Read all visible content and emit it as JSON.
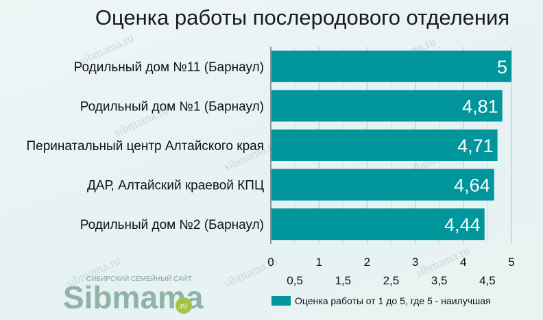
{
  "title": "Оценка работы послеродового отделения",
  "chart_data": {
    "type": "bar",
    "orientation": "horizontal",
    "title": "Оценка работы послеродового отделения",
    "categories": [
      "Родильный дом №11 (Барнаул)",
      "Родильный дом №1 (Барнаул)",
      "Перинатальный центр Алтайского края",
      "ДАР, Алтайский краевой КПЦ",
      "Родильный дом №2 (Барнаул)"
    ],
    "values": [
      5,
      4.81,
      4.71,
      4.64,
      4.44
    ],
    "value_labels": [
      "5",
      "4,81",
      "4,71",
      "4,64",
      "4,44"
    ],
    "series": [
      {
        "name": "Оценка работы от 1 до 5, где 5 - наилучшая",
        "values": [
          5,
          4.81,
          4.71,
          4.64,
          4.44
        ]
      }
    ],
    "xlim": [
      0,
      5
    ],
    "major_ticks": [
      "0",
      "1",
      "2",
      "3",
      "4",
      "5"
    ],
    "minor_ticks": [
      "0,5",
      "1,5",
      "2,5",
      "3,5",
      "4,5"
    ],
    "grid": true,
    "legend_position": "bottom-right",
    "bar_color": "#00969b",
    "grid_color": "#c8d0d0"
  },
  "legend": {
    "label": "Оценка работы от 1 до 5, где 5 - наилучшая"
  },
  "logo": {
    "main": "Sibmama",
    "sub": "СИБИРСКИЙ СЕМЕЙНЫЙ САЙТ",
    "tld": ".ru"
  },
  "watermark": "sibmama.ru"
}
